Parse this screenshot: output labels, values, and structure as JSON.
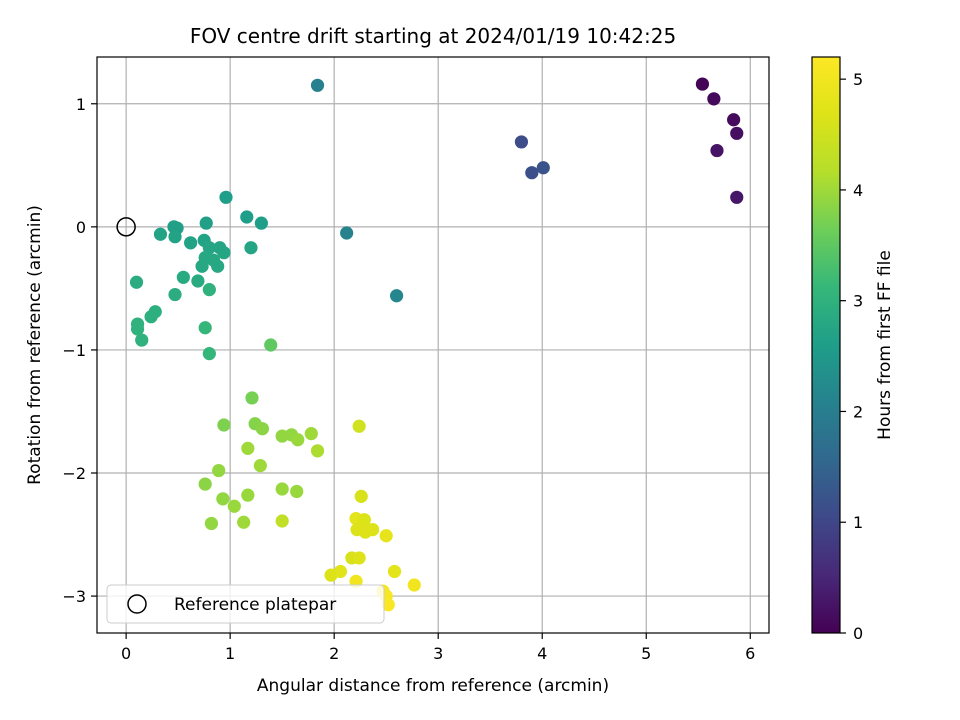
{
  "chart_data": {
    "type": "scatter",
    "title": "FOV centre drift starting at 2024/01/19 10:42:25",
    "xlabel": "Angular distance from reference (arcmin)",
    "ylabel": "Rotation from reference (arcmin)",
    "colorbar_label": "Hours from first FF file",
    "xlim": [
      -0.28,
      6.18
    ],
    "ylim": [
      -3.3,
      1.38
    ],
    "clim": [
      0,
      5.2
    ],
    "xticks": [
      0,
      1,
      2,
      3,
      4,
      5,
      6
    ],
    "yticks": [
      -3,
      -2,
      -1,
      0,
      1
    ],
    "colorbar_ticks": [
      0,
      1,
      2,
      3,
      4,
      5
    ],
    "grid": true,
    "legend_position": "bottom-left",
    "legend": [
      {
        "label": "Reference platepar",
        "marker": "open-circle"
      }
    ],
    "reference_point": {
      "x": 0,
      "y": 0
    },
    "colormap": "viridis",
    "points": [
      {
        "x": 5.54,
        "y": 1.16,
        "t": 0.05
      },
      {
        "x": 5.65,
        "y": 1.04,
        "t": 0.1
      },
      {
        "x": 5.84,
        "y": 0.87,
        "t": 0.15
      },
      {
        "x": 5.87,
        "y": 0.76,
        "t": 0.2
      },
      {
        "x": 5.68,
        "y": 0.62,
        "t": 0.25
      },
      {
        "x": 5.87,
        "y": 0.24,
        "t": 0.3
      },
      {
        "x": 3.8,
        "y": 0.69,
        "t": 1.1
      },
      {
        "x": 3.9,
        "y": 0.44,
        "t": 1.15
      },
      {
        "x": 4.01,
        "y": 0.48,
        "t": 1.2
      },
      {
        "x": 1.84,
        "y": 1.15,
        "t": 2.05
      },
      {
        "x": 2.12,
        "y": -0.05,
        "t": 2.1
      },
      {
        "x": 2.6,
        "y": -0.56,
        "t": 2.15
      },
      {
        "x": 0.96,
        "y": 0.24,
        "t": 2.6
      },
      {
        "x": 1.16,
        "y": 0.08,
        "t": 2.6
      },
      {
        "x": 1.3,
        "y": 0.03,
        "t": 2.6
      },
      {
        "x": 0.77,
        "y": 0.03,
        "t": 2.65
      },
      {
        "x": 0.46,
        "y": 0.0,
        "t": 2.65
      },
      {
        "x": 0.49,
        "y": -0.01,
        "t": 2.65
      },
      {
        "x": 0.33,
        "y": -0.06,
        "t": 2.7
      },
      {
        "x": 0.47,
        "y": -0.08,
        "t": 2.7
      },
      {
        "x": 0.62,
        "y": -0.13,
        "t": 2.7
      },
      {
        "x": 0.75,
        "y": -0.11,
        "t": 2.7
      },
      {
        "x": 0.8,
        "y": -0.17,
        "t": 2.75
      },
      {
        "x": 0.9,
        "y": -0.17,
        "t": 2.75
      },
      {
        "x": 0.94,
        "y": -0.21,
        "t": 2.75
      },
      {
        "x": 1.2,
        "y": -0.17,
        "t": 2.75
      },
      {
        "x": 0.76,
        "y": -0.25,
        "t": 2.8
      },
      {
        "x": 0.84,
        "y": -0.27,
        "t": 2.8
      },
      {
        "x": 0.73,
        "y": -0.32,
        "t": 2.8
      },
      {
        "x": 0.88,
        "y": -0.32,
        "t": 2.8
      },
      {
        "x": 0.55,
        "y": -0.41,
        "t": 2.85
      },
      {
        "x": 0.69,
        "y": -0.44,
        "t": 2.85
      },
      {
        "x": 0.1,
        "y": -0.45,
        "t": 2.9
      },
      {
        "x": 0.47,
        "y": -0.55,
        "t": 2.9
      },
      {
        "x": 0.8,
        "y": -0.51,
        "t": 3.0
      },
      {
        "x": 0.28,
        "y": -0.69,
        "t": 2.95
      },
      {
        "x": 0.24,
        "y": -0.73,
        "t": 2.95
      },
      {
        "x": 0.11,
        "y": -0.79,
        "t": 3.0
      },
      {
        "x": 0.11,
        "y": -0.83,
        "t": 3.0
      },
      {
        "x": 0.15,
        "y": -0.92,
        "t": 3.0
      },
      {
        "x": 0.76,
        "y": -0.82,
        "t": 3.1
      },
      {
        "x": 0.8,
        "y": -1.03,
        "t": 3.1
      },
      {
        "x": 1.39,
        "y": -0.96,
        "t": 3.5
      },
      {
        "x": 1.21,
        "y": -1.39,
        "t": 3.7
      },
      {
        "x": 0.94,
        "y": -1.61,
        "t": 3.75
      },
      {
        "x": 1.24,
        "y": -1.6,
        "t": 3.8
      },
      {
        "x": 1.31,
        "y": -1.64,
        "t": 3.85
      },
      {
        "x": 1.5,
        "y": -1.7,
        "t": 3.9
      },
      {
        "x": 1.59,
        "y": -1.69,
        "t": 3.9
      },
      {
        "x": 1.65,
        "y": -1.73,
        "t": 3.95
      },
      {
        "x": 1.78,
        "y": -1.68,
        "t": 4.0
      },
      {
        "x": 1.84,
        "y": -1.82,
        "t": 4.1
      },
      {
        "x": 1.17,
        "y": -1.8,
        "t": 4.0
      },
      {
        "x": 1.29,
        "y": -1.94,
        "t": 4.0
      },
      {
        "x": 0.89,
        "y": -1.98,
        "t": 3.9
      },
      {
        "x": 0.76,
        "y": -2.09,
        "t": 3.85
      },
      {
        "x": 0.93,
        "y": -2.21,
        "t": 3.9
      },
      {
        "x": 1.04,
        "y": -2.27,
        "t": 3.95
      },
      {
        "x": 1.17,
        "y": -2.18,
        "t": 3.95
      },
      {
        "x": 1.5,
        "y": -2.13,
        "t": 3.95
      },
      {
        "x": 1.64,
        "y": -2.15,
        "t": 3.95
      },
      {
        "x": 0.82,
        "y": -2.41,
        "t": 3.9
      },
      {
        "x": 1.13,
        "y": -2.4,
        "t": 4.0
      },
      {
        "x": 1.5,
        "y": -2.39,
        "t": 4.3
      },
      {
        "x": 2.24,
        "y": -1.62,
        "t": 4.5
      },
      {
        "x": 2.26,
        "y": -2.19,
        "t": 4.6
      },
      {
        "x": 2.21,
        "y": -2.37,
        "t": 4.8
      },
      {
        "x": 2.29,
        "y": -2.38,
        "t": 4.65
      },
      {
        "x": 2.22,
        "y": -2.46,
        "t": 4.7
      },
      {
        "x": 2.3,
        "y": -2.48,
        "t": 4.7
      },
      {
        "x": 2.37,
        "y": -2.46,
        "t": 4.7
      },
      {
        "x": 2.5,
        "y": -2.51,
        "t": 4.85
      },
      {
        "x": 2.17,
        "y": -2.69,
        "t": 4.6
      },
      {
        "x": 2.24,
        "y": -2.69,
        "t": 4.7
      },
      {
        "x": 2.06,
        "y": -2.8,
        "t": 4.75
      },
      {
        "x": 1.97,
        "y": -2.83,
        "t": 4.7
      },
      {
        "x": 2.58,
        "y": -2.8,
        "t": 4.8
      },
      {
        "x": 2.21,
        "y": -2.88,
        "t": 5.0
      },
      {
        "x": 2.47,
        "y": -2.96,
        "t": 5.05
      },
      {
        "x": 2.5,
        "y": -3.0,
        "t": 5.1
      },
      {
        "x": 2.52,
        "y": -3.07,
        "t": 5.15
      },
      {
        "x": 2.77,
        "y": -2.91,
        "t": 5.0
      }
    ]
  }
}
